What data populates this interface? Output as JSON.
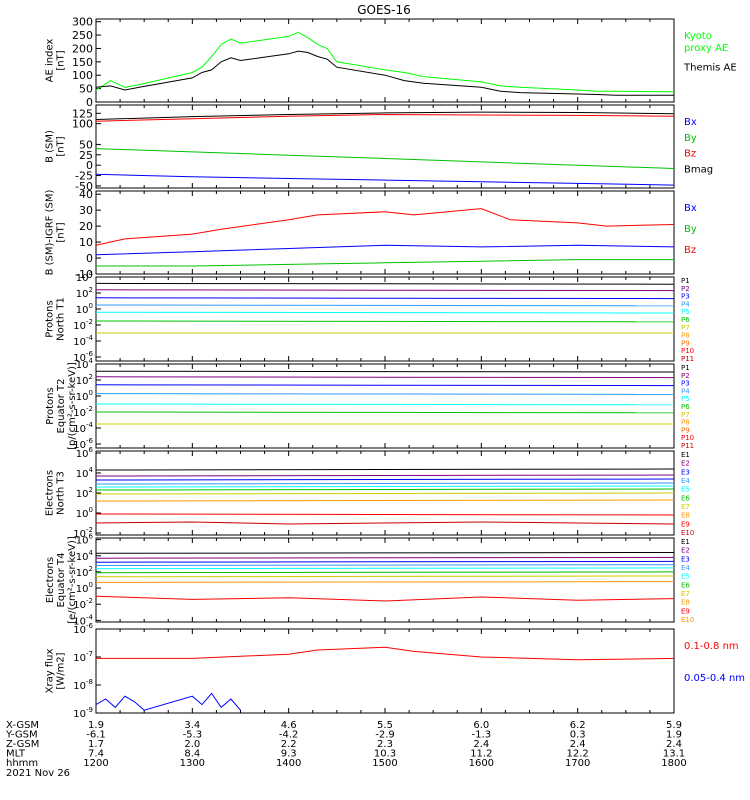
{
  "title": "GOES-16",
  "chart_data": [
    {
      "type": "line",
      "id": "ae",
      "ylabel": [
        "AE index",
        "[nT]"
      ],
      "ylim": [
        0,
        310
      ],
      "yticks": [
        0,
        50,
        100,
        150,
        200,
        250,
        300
      ],
      "log": false,
      "series": [
        {
          "name": "Kyoto proxy AE",
          "label": [
            "Kyoto",
            "proxy AE"
          ],
          "color": "#00ff00",
          "x": [
            1200,
            1215,
            1230,
            1245,
            1300,
            1310,
            1320,
            1330,
            1340,
            1350,
            1400,
            1410,
            1420,
            1430,
            1440,
            1450,
            1500,
            1520,
            1540,
            1600,
            1620,
            1640,
            1700,
            1720,
            1740,
            1800
          ],
          "y": [
            45,
            80,
            55,
            65,
            110,
            130,
            170,
            215,
            235,
            220,
            245,
            260,
            240,
            215,
            200,
            150,
            120,
            110,
            95,
            75,
            60,
            55,
            45,
            40,
            40,
            38
          ]
        },
        {
          "name": "Themis AE",
          "label": [
            "Themis AE"
          ],
          "color": "#000000",
          "x": [
            1200,
            1215,
            1230,
            1245,
            1300,
            1310,
            1320,
            1330,
            1340,
            1350,
            1400,
            1410,
            1420,
            1430,
            1440,
            1450,
            1500,
            1520,
            1540,
            1600,
            1620,
            1640,
            1700,
            1720,
            1740,
            1800
          ],
          "y": [
            55,
            60,
            45,
            55,
            90,
            110,
            120,
            150,
            165,
            155,
            180,
            190,
            185,
            170,
            160,
            130,
            100,
            80,
            70,
            55,
            40,
            35,
            30,
            28,
            25,
            25
          ]
        }
      ]
    },
    {
      "type": "line",
      "id": "bsm",
      "ylabel": [
        "B (SM)",
        "[nT]"
      ],
      "ylim": [
        -55,
        145
      ],
      "yticks": [
        -50,
        -25,
        0,
        25,
        50,
        100,
        125
      ],
      "log": false,
      "series": [
        {
          "name": "Bx",
          "label": [
            "Bx"
          ],
          "color": "#0000ff",
          "x": [
            1200,
            1300,
            1400,
            1500,
            1600,
            1700,
            1800
          ],
          "y": [
            -22,
            -28,
            -32,
            -36,
            -40,
            -44,
            -48
          ]
        },
        {
          "name": "By",
          "label": [
            "By"
          ],
          "color": "#00c000",
          "x": [
            1200,
            1300,
            1400,
            1500,
            1600,
            1700,
            1800
          ],
          "y": [
            40,
            32,
            24,
            16,
            8,
            0,
            -8
          ]
        },
        {
          "name": "Bz",
          "label": [
            "Bz"
          ],
          "color": "#ff0000",
          "x": [
            1200,
            1300,
            1400,
            1500,
            1600,
            1700,
            1800
          ],
          "y": [
            106,
            112,
            118,
            122,
            121,
            120,
            118
          ]
        },
        {
          "name": "Bmag",
          "label": [
            "Bmag"
          ],
          "color": "#000000",
          "x": [
            1200,
            1300,
            1400,
            1500,
            1600,
            1700,
            1800
          ],
          "y": [
            110,
            117,
            122,
            126,
            128,
            127,
            124
          ]
        }
      ]
    },
    {
      "type": "line",
      "id": "bigrf",
      "ylabel": [
        "B (SM)-IGRF (SM)",
        "[nT]"
      ],
      "ylim": [
        -10,
        42
      ],
      "yticks": [
        -10,
        0,
        10,
        20,
        30,
        40
      ],
      "log": false,
      "series": [
        {
          "name": "Bx",
          "label": [
            "Bx"
          ],
          "color": "#0000ff",
          "x": [
            1200,
            1300,
            1400,
            1500,
            1600,
            1700,
            1800
          ],
          "y": [
            2,
            4,
            6,
            8,
            7,
            8,
            7
          ]
        },
        {
          "name": "By",
          "label": [
            "By"
          ],
          "color": "#00c000",
          "x": [
            1200,
            1300,
            1400,
            1500,
            1600,
            1700,
            1800
          ],
          "y": [
            -5,
            -5,
            -4,
            -3,
            -2,
            -1,
            -1
          ]
        },
        {
          "name": "Bz",
          "label": [
            "Bz"
          ],
          "color": "#ff0000",
          "x": [
            1200,
            1230,
            1300,
            1330,
            1400,
            1430,
            1500,
            1530,
            1600,
            1630,
            1700,
            1730,
            1800
          ],
          "y": [
            8,
            12,
            15,
            18,
            24,
            27,
            29,
            27,
            31,
            24,
            22,
            20,
            21
          ]
        }
      ]
    },
    {
      "type": "line",
      "id": "protons-north",
      "ylabel": [
        "Protons",
        "North T1"
      ],
      "ylim": [
        -6.5,
        4
      ],
      "yticks": [
        4,
        2,
        0,
        -2,
        -4,
        -6
      ],
      "log": true,
      "channels": [
        "P1",
        "P2",
        "P3",
        "P4",
        "P5",
        "P6",
        "P7",
        "P8",
        "P9",
        "P10",
        "P11"
      ],
      "series": [
        {
          "name": "P1",
          "color": "#000000",
          "x": [
            1200,
            1800
          ],
          "y": [
            3.2,
            3.1
          ]
        },
        {
          "name": "P2",
          "color": "#800080",
          "x": [
            1200,
            1800
          ],
          "y": [
            2.4,
            2.3
          ]
        },
        {
          "name": "P3",
          "color": "#0000ff",
          "x": [
            1200,
            1800
          ],
          "y": [
            1.4,
            1.3
          ]
        },
        {
          "name": "P4",
          "color": "#3399ff",
          "x": [
            1200,
            1800
          ],
          "y": [
            0.5,
            0.4
          ]
        },
        {
          "name": "P5",
          "color": "#00ffff",
          "x": [
            1200,
            1800
          ],
          "y": [
            -0.4,
            -0.5
          ]
        },
        {
          "name": "P6",
          "color": "#00c000",
          "x": [
            1200,
            1800
          ],
          "y": [
            -1.5,
            -1.6
          ]
        },
        {
          "name": "P7",
          "color": "#cccc00",
          "x": [
            1200,
            1800
          ],
          "y": [
            -3.0,
            -3.0
          ]
        }
      ]
    },
    {
      "type": "line",
      "id": "protons-equator",
      "ylabel": [
        "Protons",
        "Equator T2",
        "[p/(cm²-s-sr-keV)]"
      ],
      "ylim": [
        -6.5,
        4
      ],
      "yticks": [
        4,
        2,
        0,
        -2,
        -4,
        -6
      ],
      "log": true,
      "channels": [
        "P1",
        "P2",
        "P3",
        "P4",
        "P5",
        "P6",
        "P7",
        "P8",
        "P9",
        "P10",
        "P11"
      ],
      "series": [
        {
          "name": "P1",
          "color": "#000000",
          "x": [
            1200,
            1800
          ],
          "y": [
            3.1,
            3.0
          ]
        },
        {
          "name": "P2",
          "color": "#800080",
          "x": [
            1200,
            1800
          ],
          "y": [
            2.4,
            2.3
          ]
        },
        {
          "name": "P3",
          "color": "#0000ff",
          "x": [
            1200,
            1800
          ],
          "y": [
            1.4,
            1.3
          ]
        },
        {
          "name": "P4",
          "color": "#3399ff",
          "x": [
            1200,
            1800
          ],
          "y": [
            0.3,
            0.2
          ]
        },
        {
          "name": "P5",
          "color": "#00ffff",
          "x": [
            1200,
            1800
          ],
          "y": [
            -1.0,
            -1.1
          ]
        },
        {
          "name": "P6",
          "color": "#00c000",
          "x": [
            1200,
            1800
          ],
          "y": [
            -2.0,
            -2.1
          ]
        },
        {
          "name": "P7",
          "color": "#cccc00",
          "x": [
            1200,
            1800
          ],
          "y": [
            -3.5,
            -3.5
          ]
        }
      ]
    },
    {
      "type": "line",
      "id": "electrons-north",
      "ylabel": [
        "Electrons",
        "North T3"
      ],
      "ylim": [
        -2.2,
        6.2
      ],
      "yticks": [
        6,
        4,
        2,
        0,
        -2
      ],
      "log": true,
      "channels": [
        "E1",
        "E2",
        "E3",
        "E4",
        "E5",
        "E6",
        "E7",
        "E8",
        "E9",
        "E10"
      ],
      "series": [
        {
          "name": "E1",
          "color": "#000000",
          "x": [
            1200,
            1800
          ],
          "y": [
            4.3,
            4.4
          ]
        },
        {
          "name": "E2",
          "color": "#800080",
          "x": [
            1200,
            1800
          ],
          "y": [
            3.7,
            3.8
          ]
        },
        {
          "name": "E3",
          "color": "#0000ff",
          "x": [
            1200,
            1800
          ],
          "y": [
            3.3,
            3.4
          ]
        },
        {
          "name": "E4",
          "color": "#3399ff",
          "x": [
            1200,
            1800
          ],
          "y": [
            2.9,
            3.0
          ]
        },
        {
          "name": "E5",
          "color": "#00ffff",
          "x": [
            1200,
            1800
          ],
          "y": [
            2.6,
            2.7
          ]
        },
        {
          "name": "E6",
          "color": "#00c000",
          "x": [
            1200,
            1800
          ],
          "y": [
            2.3,
            2.4
          ]
        },
        {
          "name": "E7",
          "color": "#cccc00",
          "x": [
            1200,
            1800
          ],
          "y": [
            1.9,
            2.0
          ]
        },
        {
          "name": "E8",
          "color": "#ff9900",
          "x": [
            1200,
            1800
          ],
          "y": [
            1.2,
            1.3
          ]
        },
        {
          "name": "E9",
          "color": "#ff0000",
          "x": [
            1200,
            1800
          ],
          "y": [
            -0.1,
            -0.2
          ]
        },
        {
          "name": "E10",
          "color": "#cc0000",
          "x": [
            1200,
            1300,
            1400,
            1500,
            1600,
            1700,
            1800
          ],
          "y": [
            -1.0,
            -0.9,
            -1.1,
            -1.0,
            -0.9,
            -1.0,
            -1.1
          ]
        }
      ]
    },
    {
      "type": "line",
      "id": "electrons-equator",
      "ylabel": [
        "Electrons",
        "Equator T4",
        "[e/(cm²-s-sr-keV)]"
      ],
      "ylim": [
        -4.2,
        6.2
      ],
      "yticks": [
        6,
        4,
        2,
        0,
        -2,
        -4
      ],
      "log": true,
      "channels": [
        "E1",
        "E2",
        "E3",
        "E4",
        "E5",
        "E6",
        "E7",
        "E8",
        "E9",
        "E10"
      ],
      "series": [
        {
          "name": "E1",
          "color": "#000000",
          "x": [
            1200,
            1800
          ],
          "y": [
            4.3,
            4.4
          ]
        },
        {
          "name": "E2",
          "color": "#800080",
          "x": [
            1200,
            1800
          ],
          "y": [
            3.7,
            3.8
          ]
        },
        {
          "name": "E3",
          "color": "#0000ff",
          "x": [
            1200,
            1800
          ],
          "y": [
            3.2,
            3.3
          ]
        },
        {
          "name": "E4",
          "color": "#3399ff",
          "x": [
            1200,
            1800
          ],
          "y": [
            2.8,
            2.9
          ]
        },
        {
          "name": "E5",
          "color": "#00ffff",
          "x": [
            1200,
            1800
          ],
          "y": [
            2.4,
            2.5
          ]
        },
        {
          "name": "E6",
          "color": "#00c000",
          "x": [
            1200,
            1800
          ],
          "y": [
            1.9,
            2.0
          ]
        },
        {
          "name": "E7",
          "color": "#cccc00",
          "x": [
            1200,
            1800
          ],
          "y": [
            1.4,
            1.5
          ]
        },
        {
          "name": "E8",
          "color": "#ff9900",
          "x": [
            1200,
            1800
          ],
          "y": [
            0.7,
            0.8
          ]
        },
        {
          "name": "E9",
          "color": "#ff0000",
          "x": [
            1200,
            1300,
            1400,
            1500,
            1600,
            1700,
            1800
          ],
          "y": [
            -1.0,
            -1.4,
            -1.2,
            -1.6,
            -1.1,
            -1.5,
            -1.3
          ]
        }
      ]
    },
    {
      "type": "line",
      "id": "xray",
      "ylabel": [
        "Xray flux",
        "[W/m2]"
      ],
      "ylim": [
        -9,
        -6
      ],
      "yticks": [
        -9,
        -8,
        -7,
        -6
      ],
      "log": true,
      "series": [
        {
          "name": "0.1-0.8 nm",
          "label": [
            "0.1-0.8 nm"
          ],
          "color": "#ff0000",
          "x": [
            1200,
            1300,
            1400,
            1430,
            1500,
            1530,
            1600,
            1700,
            1800
          ],
          "y": [
            -7.05,
            -7.05,
            -6.9,
            -6.75,
            -6.65,
            -6.8,
            -7.0,
            -7.1,
            -7.05
          ]
        },
        {
          "name": "0.05-0.4 nm",
          "label": [
            "0.05-0.4 nm"
          ],
          "color": "#0000ff",
          "x": [
            1200,
            1210,
            1220,
            1230,
            1240,
            1250,
            1300,
            1310,
            1320,
            1330,
            1340,
            1350
          ],
          "y": [
            -8.7,
            -8.5,
            -8.8,
            -8.4,
            -8.6,
            -8.9,
            -8.4,
            -8.7,
            -8.3,
            -8.8,
            -8.5,
            -8.9
          ]
        }
      ]
    }
  ],
  "orbit": {
    "labels": [
      "X-GSM",
      "Y-GSM",
      "Z-GSM",
      "MLT",
      "hhmm"
    ],
    "columns": [
      [
        "1.9",
        "-6.1",
        "1.7",
        "7.4",
        "1200"
      ],
      [
        "3.4",
        "-5.3",
        "2.0",
        "8.4",
        "1300"
      ],
      [
        "4.6",
        "-4.2",
        "2.2",
        "9.3",
        "1400"
      ],
      [
        "5.5",
        "-2.9",
        "2.3",
        "10.3",
        "1500"
      ],
      [
        "6.0",
        "-1.3",
        "2.4",
        "11.2",
        "1600"
      ],
      [
        "6.2",
        "0.3",
        "2.4",
        "12.2",
        "1700"
      ],
      [
        "5.9",
        "1.9",
        "2.4",
        "13.1",
        "1800"
      ]
    ],
    "date": "2021 Nov 26"
  }
}
